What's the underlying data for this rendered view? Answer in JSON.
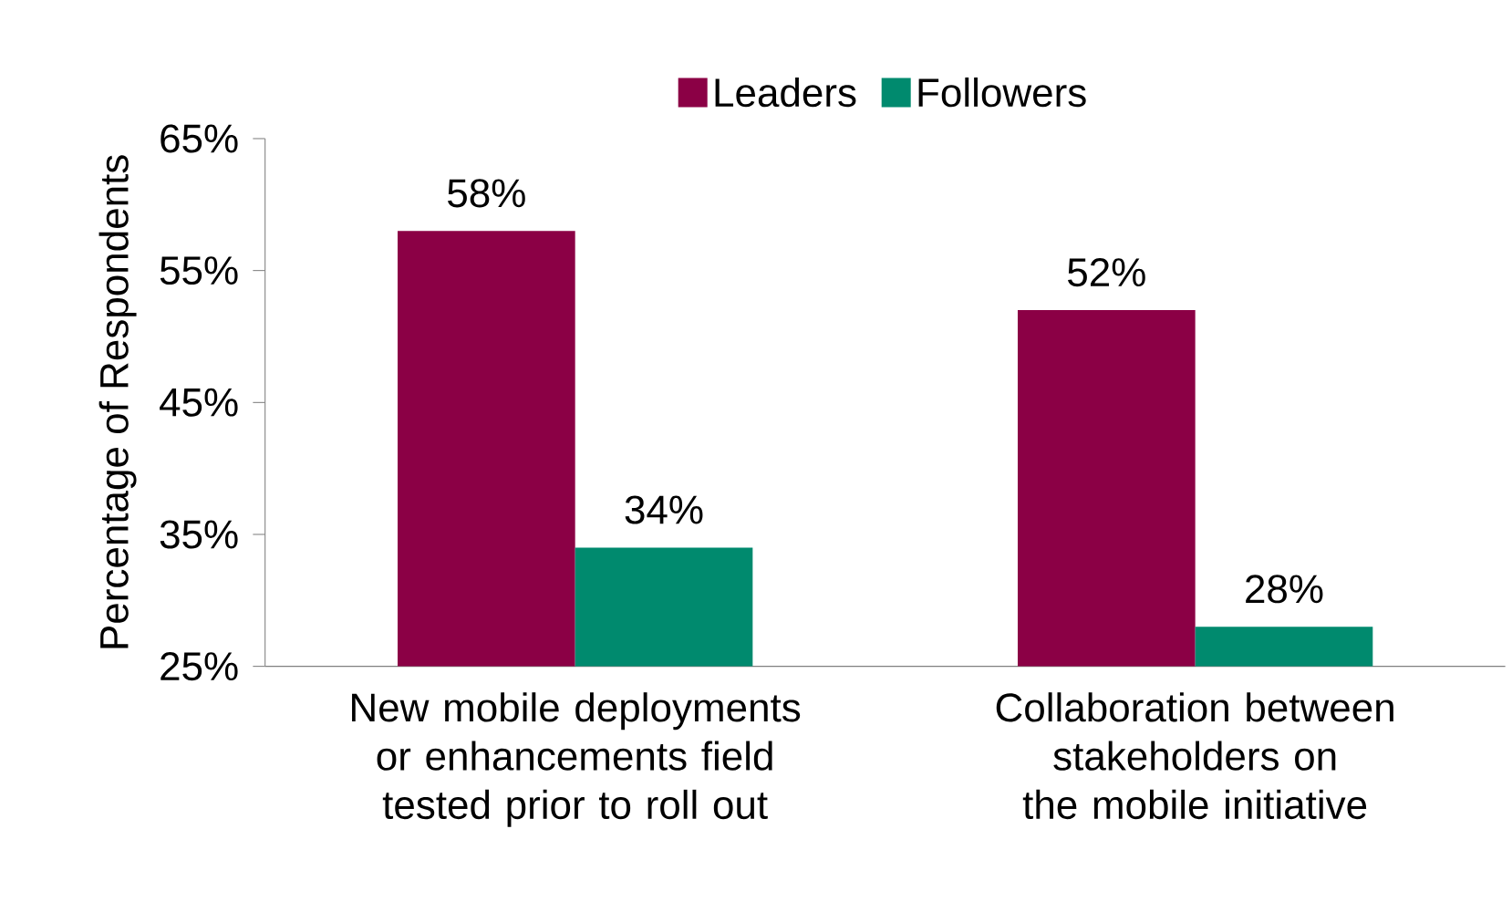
{
  "chart_data": {
    "type": "bar",
    "ylabel": "Percentage of Respondents",
    "categories": [
      "New mobile deployments or enhancements field tested prior to roll out",
      "Collaboration between stakeholders on the mobile initiative"
    ],
    "series": [
      {
        "name": "Leaders",
        "color": "#8b0045",
        "values": [
          58,
          52
        ],
        "value_labels": [
          "58%",
          "52%"
        ]
      },
      {
        "name": "Followers",
        "color": "#008a6e",
        "values": [
          34,
          28
        ],
        "value_labels": [
          "34%",
          "28%"
        ]
      }
    ],
    "ylim": [
      25,
      65
    ],
    "yticks": [
      {
        "value": 25,
        "label": "25%"
      },
      {
        "value": 35,
        "label": "35%"
      },
      {
        "value": 45,
        "label": "45%"
      },
      {
        "value": 55,
        "label": "55%"
      },
      {
        "value": 65,
        "label": "65%"
      }
    ],
    "grid": false,
    "legend": "top"
  }
}
